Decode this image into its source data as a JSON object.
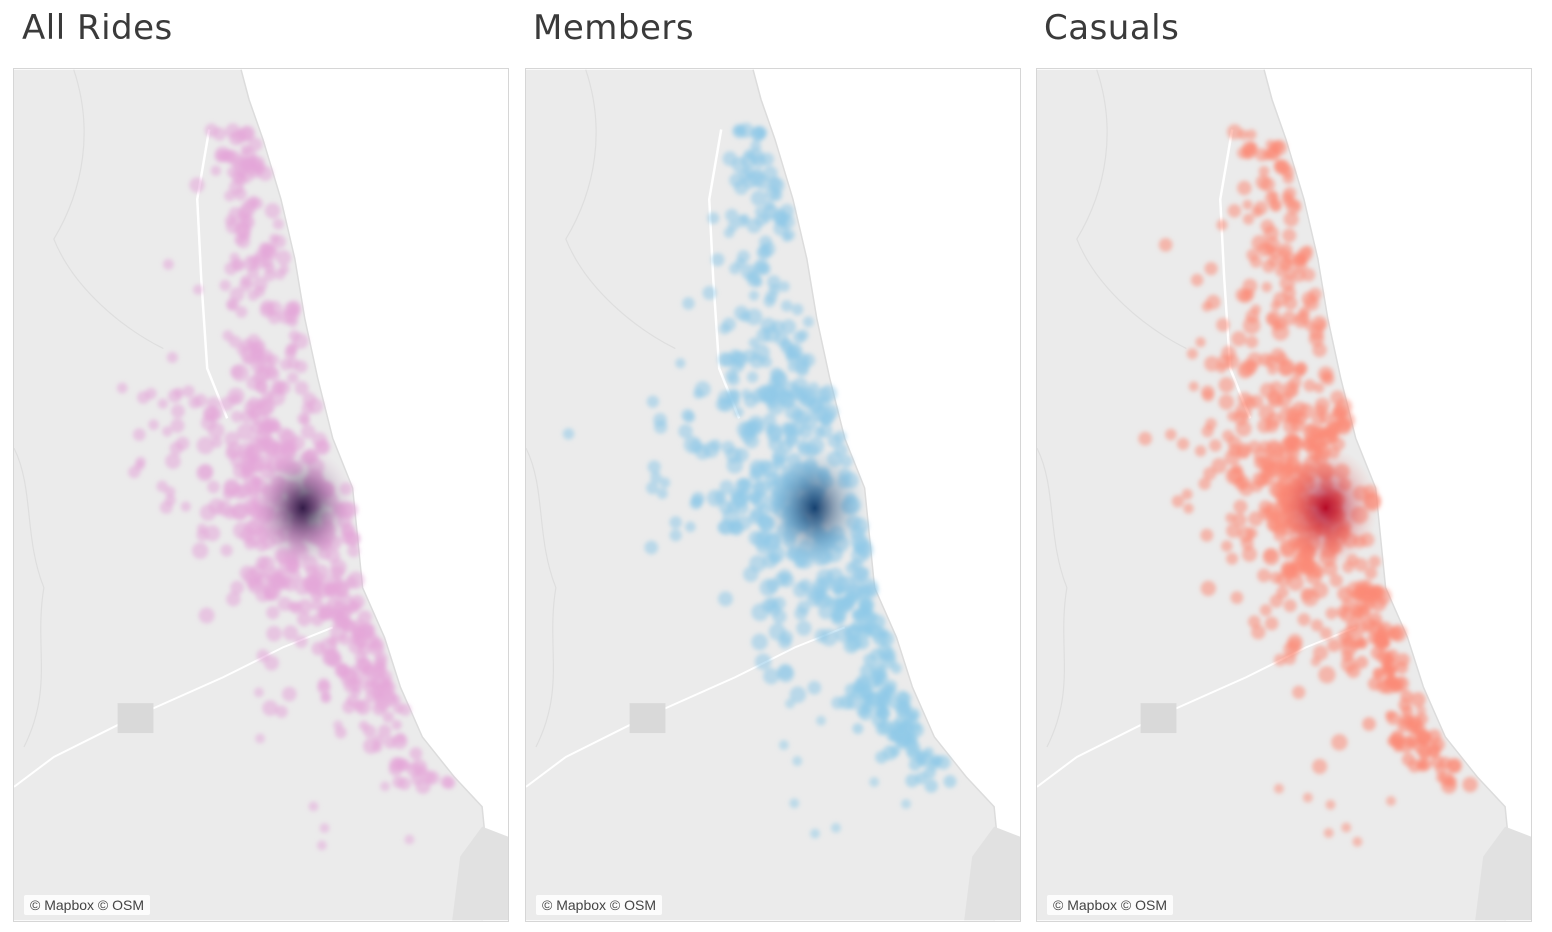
{
  "maps": [
    {
      "title": "All Rides",
      "attribution": "© Mapbox © OSM",
      "color": "#e4a6d9",
      "core": "#2b1541"
    },
    {
      "title": "Members",
      "attribution": "© Mapbox © OSM",
      "color": "#8fc9e8",
      "core": "#0d3a6b"
    },
    {
      "title": "Casuals",
      "attribution": "© Mapbox © OSM",
      "color": "#fb8a76",
      "core": "#b5001e"
    }
  ]
}
